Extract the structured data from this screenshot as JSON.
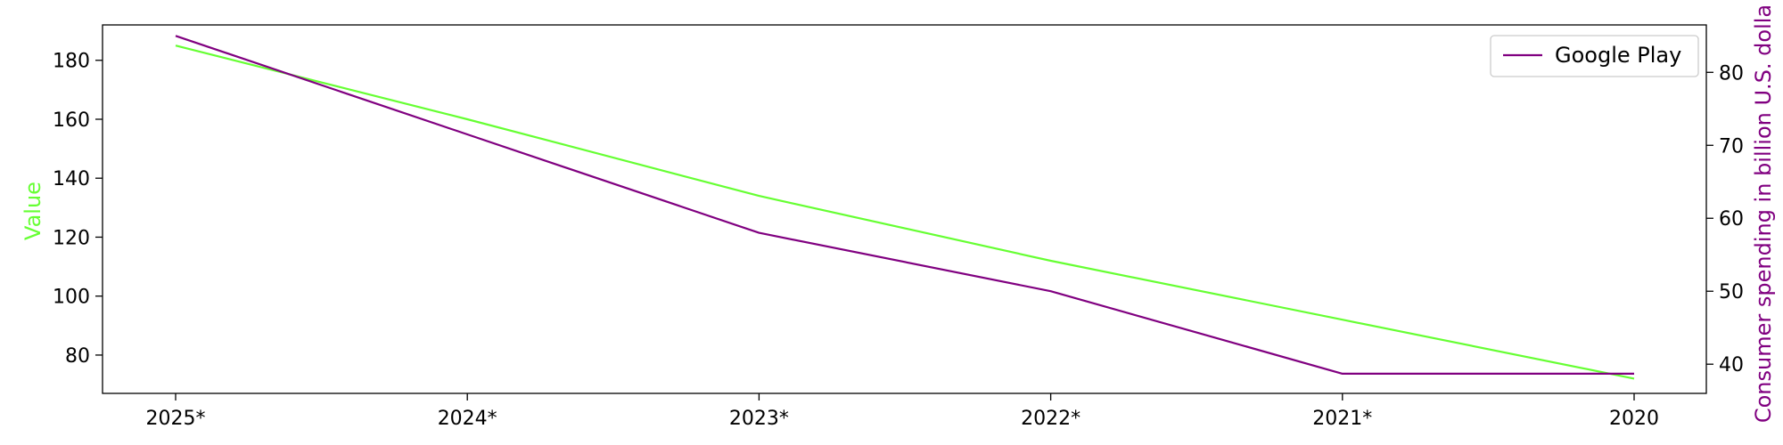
{
  "chart_data": {
    "type": "line",
    "title": "",
    "categories": [
      "2025*",
      "2024*",
      "2023*",
      "2022*",
      "2021*",
      "2020"
    ],
    "series": [
      {
        "name": "",
        "axis": "left",
        "color": "#66ff33",
        "values": [
          185,
          160,
          134,
          112,
          92,
          72
        ]
      },
      {
        "name": "Google Play",
        "axis": "right",
        "color": "#800080",
        "values": [
          85,
          71.5,
          58,
          50,
          38.7,
          38.7
        ]
      }
    ],
    "left_axis": {
      "label": "Value",
      "label_color": "#66ff33",
      "range": [
        67,
        192
      ],
      "ticks": [
        80,
        100,
        120,
        140,
        160,
        180
      ]
    },
    "right_axis": {
      "label": "Consumer spending in billion U.S. dolla",
      "label_color": "#800080",
      "range": [
        36,
        86.5
      ],
      "ticks": [
        40,
        50,
        60,
        70,
        80
      ]
    },
    "legend": {
      "placement": "top-right",
      "entries": [
        "Google Play"
      ]
    },
    "grid": false
  }
}
